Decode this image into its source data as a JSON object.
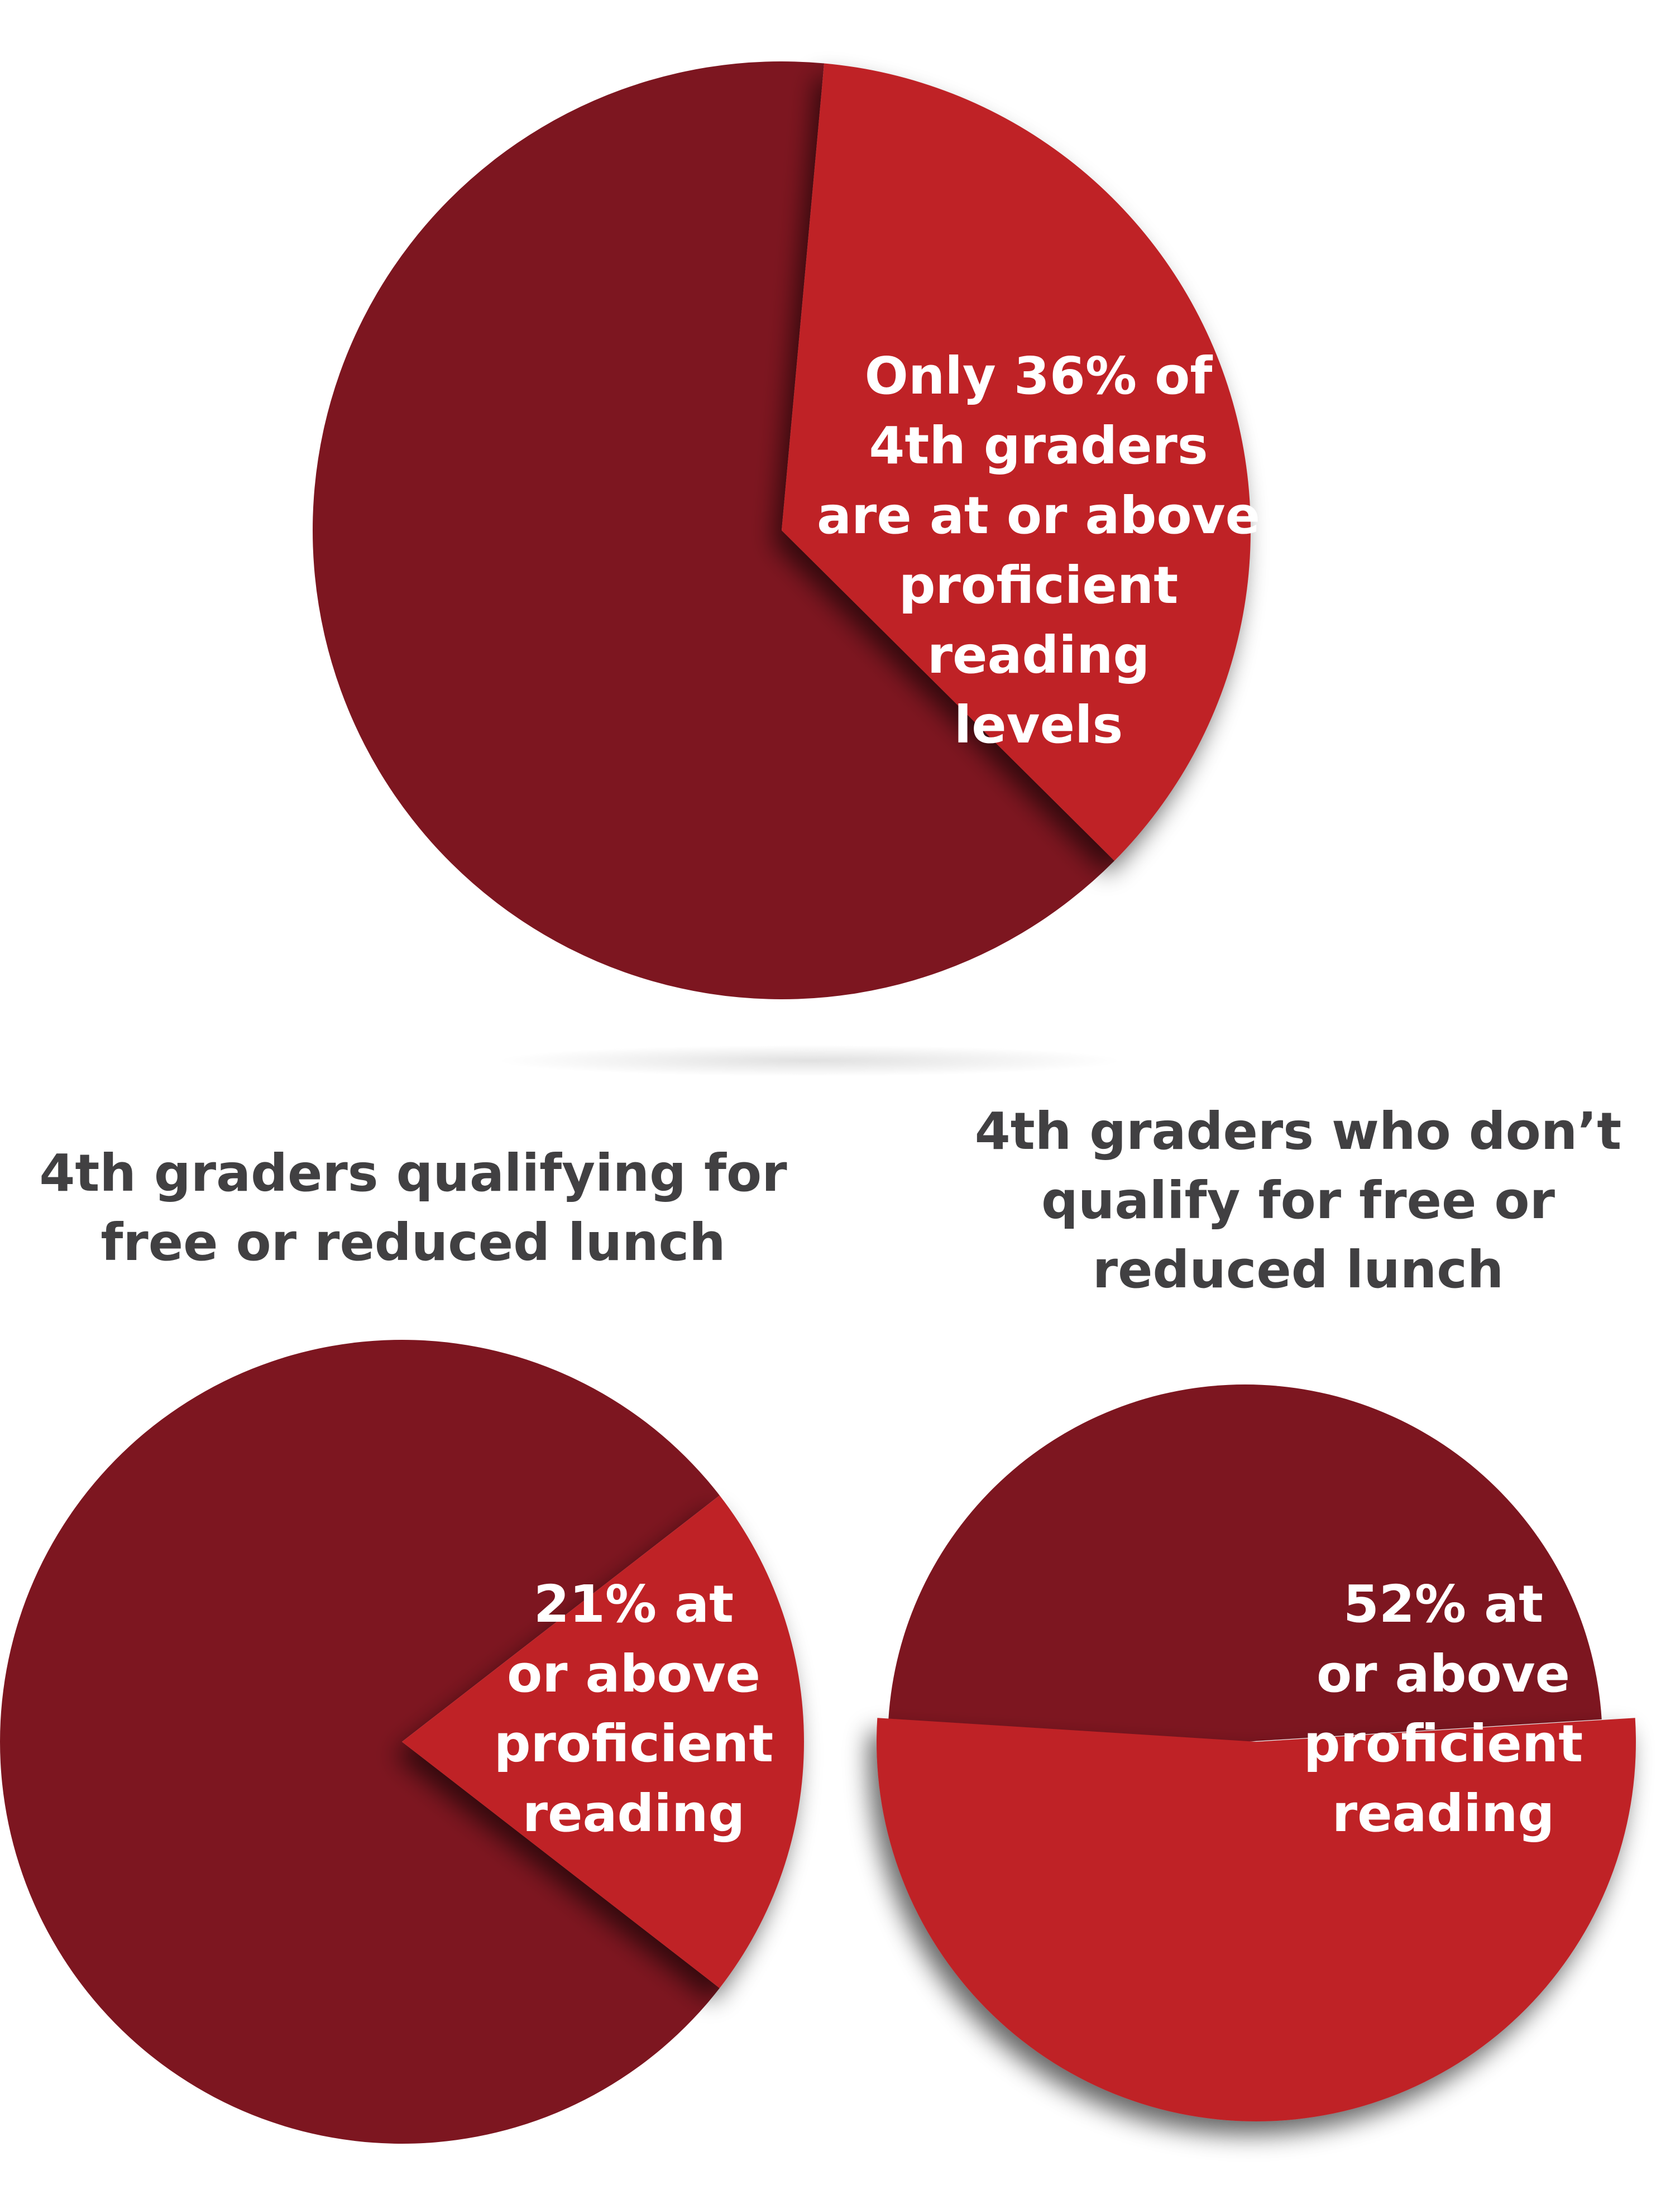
{
  "colors": {
    "background": "#ffffff",
    "remainder_slice": "#7d1620",
    "highlight_slice": "#bf2228",
    "title_text": "#414042",
    "label_text": "#ffffff"
  },
  "chart_data": [
    {
      "type": "pie",
      "title": "",
      "slices": [
        {
          "label": "Only 36% of 4th graders are at or above proficient reading levels",
          "value": 36,
          "highlight": true
        },
        {
          "label": "",
          "value": 64,
          "highlight": false
        }
      ],
      "label_lines": [
        "Only 36% of",
        "4th graders",
        "are at or above",
        "proficient",
        "reading",
        "levels"
      ]
    },
    {
      "type": "pie",
      "title": "4th graders qualifying for\nfree or reduced lunch",
      "slices": [
        {
          "label": "21% at or above proficient reading",
          "value": 21,
          "highlight": true
        },
        {
          "label": "",
          "value": 79,
          "highlight": false
        }
      ],
      "label_lines": [
        "21% at",
        "or above",
        "proficient",
        "reading"
      ]
    },
    {
      "type": "pie",
      "title": "4th graders who don’t\nqualify for free or\nreduced lunch",
      "slices": [
        {
          "label": "52% at or above proficient reading",
          "value": 52,
          "highlight": true
        },
        {
          "label": "",
          "value": 48,
          "highlight": false
        }
      ],
      "label_lines": [
        "52% at",
        "or above",
        "proficient",
        "reading"
      ]
    }
  ]
}
